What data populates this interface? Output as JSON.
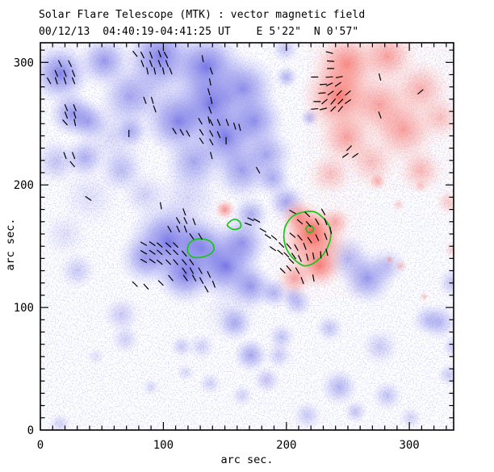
{
  "header": {
    "title": "Solar Flare Telescope (MTK) : vector magnetic field",
    "subtitle": "00/12/13  04:40:19-04:41:25 UT    E 5'22\"  N 0'57\""
  },
  "chart_data": {
    "type": "heatmap",
    "subtype": "solar vector magnetogram with overlaid transverse-field vectors and contours",
    "title": "Solar Flare Telescope (MTK) : vector magnetic field",
    "subtitle": "00/12/13  04:40:19-04:41:25 UT    E 5'22\"  N 0'57\"",
    "xlabel": "arc sec.",
    "ylabel": "arc sec.",
    "x_ticks": [
      0,
      100,
      200,
      300
    ],
    "y_ticks": [
      0,
      100,
      200,
      300
    ],
    "minor_tick_step": 10,
    "xlim": [
      0,
      336
    ],
    "ylim": [
      0,
      316
    ],
    "grid": false,
    "legend": "none",
    "colors": {
      "positive_red": "#f4675e",
      "negative_blue": "#6a6ae4",
      "contour": "#17c417",
      "vector": "#000000",
      "frame": "#000000",
      "background": "#ffffff"
    },
    "blue_blobs": [
      [
        16,
        291,
        26,
        0.85
      ],
      [
        52,
        301,
        23,
        0.7
      ],
      [
        98,
        305,
        30,
        0.9
      ],
      [
        135,
        295,
        33,
        0.95
      ],
      [
        164,
        278,
        30,
        0.8
      ],
      [
        138,
        265,
        33,
        0.95
      ],
      [
        72,
        272,
        26,
        0.55
      ],
      [
        26,
        258,
        20,
        0.75
      ],
      [
        39,
        252,
        18,
        0.6
      ],
      [
        112,
        252,
        30,
        0.85
      ],
      [
        151,
        239,
        30,
        0.9
      ],
      [
        174,
        252,
        26,
        0.75
      ],
      [
        36,
        222,
        18,
        0.55
      ],
      [
        13,
        219,
        20,
        0.4
      ],
      [
        66,
        212,
        20,
        0.45
      ],
      [
        74,
        244,
        14,
        0.5
      ],
      [
        125,
        219,
        26,
        0.6
      ],
      [
        164,
        212,
        26,
        0.65
      ],
      [
        184,
        225,
        23,
        0.6
      ],
      [
        189,
        205,
        16,
        0.55
      ],
      [
        171,
        176,
        16,
        0.55
      ],
      [
        200,
        288,
        10,
        0.5
      ],
      [
        219,
        255,
        8,
        0.5
      ],
      [
        199,
        311,
        12,
        0.4
      ],
      [
        105,
        153,
        36,
        0.95
      ],
      [
        131,
        147,
        30,
        0.9
      ],
      [
        151,
        134,
        30,
        0.9
      ],
      [
        118,
        127,
        26,
        0.85
      ],
      [
        164,
        153,
        23,
        0.7
      ],
      [
        85,
        140,
        23,
        0.6
      ],
      [
        171,
        117,
        20,
        0.7
      ],
      [
        200,
        186,
        16,
        0.6
      ],
      [
        250,
        140,
        20,
        0.5
      ],
      [
        266,
        124,
        23,
        0.7
      ],
      [
        282,
        134,
        16,
        0.4
      ],
      [
        190,
        112,
        14,
        0.5
      ],
      [
        209,
        104,
        13,
        0.45
      ],
      [
        196,
        76,
        12,
        0.4
      ],
      [
        235,
        83,
        12,
        0.4
      ],
      [
        90,
        280,
        40,
        0.3
      ],
      [
        60,
        240,
        33,
        0.25
      ],
      [
        40,
        190,
        26,
        0.2
      ],
      [
        85,
        192,
        20,
        0.3
      ],
      [
        120,
        190,
        30,
        0.25
      ],
      [
        20,
        160,
        20,
        0.2
      ],
      [
        155,
        95,
        25,
        0.2
      ],
      [
        30,
        130,
        16,
        0.35
      ],
      [
        66,
        94,
        16,
        0.35
      ],
      [
        69,
        74,
        13,
        0.3
      ],
      [
        131,
        68,
        12,
        0.3
      ],
      [
        158,
        87,
        15,
        0.5
      ],
      [
        171,
        61,
        15,
        0.6
      ],
      [
        115,
        68,
        10,
        0.35
      ],
      [
        138,
        38,
        10,
        0.3
      ],
      [
        184,
        41,
        12,
        0.4
      ],
      [
        194,
        61,
        12,
        0.35
      ],
      [
        217,
        12,
        13,
        0.35
      ],
      [
        243,
        35,
        16,
        0.5
      ],
      [
        256,
        15,
        10,
        0.4
      ],
      [
        276,
        68,
        16,
        0.35
      ],
      [
        282,
        28,
        13,
        0.4
      ],
      [
        315,
        90,
        14,
        0.4
      ],
      [
        325,
        88,
        16,
        0.45
      ],
      [
        335,
        120,
        13,
        0.4
      ],
      [
        332,
        45,
        10,
        0.35
      ],
      [
        16,
        5,
        10,
        0.3
      ],
      [
        164,
        28,
        10,
        0.3
      ],
      [
        118,
        47,
        8,
        0.25
      ],
      [
        301,
        10,
        10,
        0.3
      ],
      [
        336,
        68,
        10,
        0.35
      ],
      [
        205,
        110,
        10,
        0.3
      ],
      [
        90,
        35,
        8,
        0.25
      ],
      [
        45,
        60,
        8,
        0.2
      ]
    ],
    "red_blobs": [
      [
        249,
        298,
        30,
        0.8
      ],
      [
        282,
        305,
        26,
        0.6
      ],
      [
        243,
        272,
        33,
        0.85
      ],
      [
        276,
        265,
        30,
        0.6
      ],
      [
        309,
        278,
        26,
        0.5
      ],
      [
        295,
        245,
        30,
        0.6
      ],
      [
        249,
        239,
        26,
        0.6
      ],
      [
        325,
        255,
        20,
        0.4
      ],
      [
        269,
        219,
        23,
        0.4
      ],
      [
        309,
        212,
        20,
        0.45
      ],
      [
        236,
        209,
        20,
        0.4
      ],
      [
        332,
        186,
        12,
        0.35
      ],
      [
        274,
        203,
        8,
        0.5
      ],
      [
        223,
        153,
        30,
        0.9
      ],
      [
        220,
        163,
        20,
        0.95
      ],
      [
        227,
        134,
        20,
        0.8
      ],
      [
        210,
        174,
        16,
        0.7
      ],
      [
        207,
        124,
        16,
        0.6
      ],
      [
        240,
        170,
        14,
        0.5
      ],
      [
        150,
        180,
        9,
        0.7
      ],
      [
        284,
        139,
        4,
        0.5
      ],
      [
        293,
        134,
        6,
        0.35
      ],
      [
        312,
        109,
        4,
        0.4
      ],
      [
        291,
        184,
        6,
        0.3
      ],
      [
        335,
        147,
        8,
        0.3
      ],
      [
        309,
        199,
        6,
        0.3
      ]
    ],
    "vectors": [
      [
        16,
        299,
        -65
      ],
      [
        24,
        299,
        -65
      ],
      [
        13,
        291,
        -68
      ],
      [
        20,
        291,
        -68
      ],
      [
        27,
        291,
        -68
      ],
      [
        7,
        285,
        -60
      ],
      [
        13,
        285,
        -72
      ],
      [
        20,
        285,
        -72
      ],
      [
        27,
        285,
        -68
      ],
      [
        21,
        263,
        -68
      ],
      [
        28,
        263,
        -68
      ],
      [
        21,
        257,
        -70
      ],
      [
        28,
        257,
        -74
      ],
      [
        20,
        251,
        -48
      ],
      [
        28,
        251,
        -78
      ],
      [
        20,
        224,
        -70
      ],
      [
        27,
        224,
        -70
      ],
      [
        26,
        217,
        -50
      ],
      [
        85,
        269,
        -70
      ],
      [
        91,
        269,
        -74
      ],
      [
        93,
        262,
        -70
      ],
      [
        77,
        307,
        -52
      ],
      [
        83,
        306,
        -64
      ],
      [
        90,
        306,
        -70
      ],
      [
        97,
        307,
        -70
      ],
      [
        102,
        306,
        -60
      ],
      [
        83,
        299,
        -70
      ],
      [
        90,
        299,
        -70
      ],
      [
        97,
        299,
        -70
      ],
      [
        103,
        299,
        -70
      ],
      [
        87,
        293,
        -78
      ],
      [
        93,
        293,
        -78
      ],
      [
        100,
        293,
        -78
      ],
      [
        106,
        293,
        -70
      ],
      [
        132,
        303,
        -78
      ],
      [
        139,
        293,
        -70
      ],
      [
        138,
        284,
        -78
      ],
      [
        137,
        276,
        -74
      ],
      [
        139,
        269,
        -78
      ],
      [
        138,
        261,
        -70
      ],
      [
        137,
        253,
        -78
      ],
      [
        109,
        244,
        -58
      ],
      [
        115,
        243,
        -60
      ],
      [
        120,
        242,
        -62
      ],
      [
        130,
        252,
        -60
      ],
      [
        139,
        251,
        -64
      ],
      [
        145,
        251,
        -66
      ],
      [
        152,
        251,
        -70
      ],
      [
        131,
        243,
        -58
      ],
      [
        139,
        242,
        -62
      ],
      [
        145,
        241,
        -66
      ],
      [
        131,
        236,
        -56
      ],
      [
        139,
        235,
        -60
      ],
      [
        158,
        248,
        -72
      ],
      [
        162,
        247,
        -76
      ],
      [
        72,
        242,
        -90
      ],
      [
        151,
        236,
        -90
      ],
      [
        39,
        189,
        -35
      ],
      [
        98,
        183,
        -80
      ],
      [
        139,
        224,
        -75
      ],
      [
        177,
        212,
        -60
      ],
      [
        77,
        119,
        -45
      ],
      [
        86,
        117,
        -48
      ],
      [
        235,
        308,
        -15
      ],
      [
        236,
        301,
        -5
      ],
      [
        236,
        295,
        0
      ],
      [
        223,
        288,
        0
      ],
      [
        235,
        288,
        5
      ],
      [
        243,
        288,
        10
      ],
      [
        230,
        282,
        5
      ],
      [
        235,
        282,
        25
      ],
      [
        242,
        282,
        35
      ],
      [
        229,
        275,
        5
      ],
      [
        236,
        275,
        35
      ],
      [
        243,
        275,
        45
      ],
      [
        250,
        275,
        40
      ],
      [
        225,
        268,
        0
      ],
      [
        231,
        268,
        40
      ],
      [
        238,
        268,
        50
      ],
      [
        244,
        268,
        45
      ],
      [
        250,
        268,
        35
      ],
      [
        223,
        262,
        5
      ],
      [
        230,
        262,
        15
      ],
      [
        238,
        262,
        45
      ],
      [
        244,
        262,
        50
      ],
      [
        276,
        288,
        -75
      ],
      [
        309,
        276,
        40
      ],
      [
        276,
        257,
        -70
      ],
      [
        251,
        230,
        45
      ],
      [
        248,
        224,
        35
      ],
      [
        256,
        224,
        35
      ],
      [
        171,
        172,
        -25
      ],
      [
        176,
        171,
        -30
      ],
      [
        169,
        168,
        -20
      ],
      [
        181,
        163,
        -30
      ],
      [
        185,
        158,
        -35
      ],
      [
        190,
        157,
        -40
      ],
      [
        196,
        151,
        -45
      ],
      [
        202,
        150,
        -50
      ],
      [
        208,
        149,
        -60
      ],
      [
        215,
        150,
        -70
      ],
      [
        189,
        148,
        -35
      ],
      [
        195,
        145,
        -40
      ],
      [
        200,
        143,
        -45
      ],
      [
        206,
        142,
        -55
      ],
      [
        211,
        140,
        -65
      ],
      [
        217,
        141,
        -75
      ],
      [
        222,
        142,
        -80
      ],
      [
        228,
        143,
        -85
      ],
      [
        233,
        145,
        -75
      ],
      [
        205,
        178,
        -30
      ],
      [
        217,
        176,
        -45
      ],
      [
        230,
        178,
        -60
      ],
      [
        211,
        170,
        -40
      ],
      [
        218,
        168,
        -50
      ],
      [
        225,
        170,
        -60
      ],
      [
        232,
        170,
        -70
      ],
      [
        205,
        159,
        -40
      ],
      [
        211,
        157,
        -50
      ],
      [
        219,
        155,
        -55
      ],
      [
        225,
        157,
        -65
      ],
      [
        232,
        158,
        -70
      ],
      [
        236,
        163,
        -75
      ],
      [
        204,
        138,
        -45
      ],
      [
        202,
        132,
        -50
      ],
      [
        209,
        130,
        -60
      ],
      [
        197,
        130,
        -45
      ],
      [
        213,
        122,
        -70
      ],
      [
        222,
        124,
        -80
      ],
      [
        84,
        152,
        -30
      ],
      [
        91,
        152,
        -35
      ],
      [
        97,
        151,
        -40
      ],
      [
        104,
        151,
        -40
      ],
      [
        110,
        151,
        -45
      ],
      [
        84,
        145,
        -30
      ],
      [
        91,
        145,
        -35
      ],
      [
        97,
        145,
        -40
      ],
      [
        104,
        145,
        -45
      ],
      [
        110,
        145,
        -45
      ],
      [
        117,
        144,
        -50
      ],
      [
        84,
        138,
        -30
      ],
      [
        91,
        138,
        -35
      ],
      [
        97,
        137,
        -40
      ],
      [
        104,
        137,
        -45
      ],
      [
        110,
        137,
        -50
      ],
      [
        117,
        137,
        -50
      ],
      [
        123,
        137,
        -55
      ],
      [
        105,
        164,
        -60
      ],
      [
        112,
        164,
        -65
      ],
      [
        118,
        164,
        -70
      ],
      [
        112,
        171,
        -60
      ],
      [
        118,
        171,
        -65
      ],
      [
        125,
        170,
        -70
      ],
      [
        117,
        178,
        -70
      ],
      [
        123,
        158,
        -55
      ],
      [
        130,
        158,
        -60
      ],
      [
        117,
        130,
        -55
      ],
      [
        123,
        130,
        -60
      ],
      [
        130,
        130,
        -60
      ],
      [
        118,
        124,
        -55
      ],
      [
        125,
        124,
        -60
      ],
      [
        131,
        122,
        -60
      ],
      [
        137,
        127,
        -65
      ],
      [
        141,
        119,
        -70
      ],
      [
        135,
        115,
        -60
      ],
      [
        106,
        124,
        -50
      ],
      [
        98,
        120,
        -45
      ]
    ],
    "contours": [
      {
        "points": [
          [
            215,
            178
          ],
          [
            206,
            175
          ],
          [
            200,
            168
          ],
          [
            198,
            160
          ],
          [
            199,
            151
          ],
          [
            203,
            143
          ],
          [
            209,
            137
          ],
          [
            215,
            134
          ],
          [
            222,
            136
          ],
          [
            228,
            141
          ],
          [
            233,
            148
          ],
          [
            236,
            157
          ],
          [
            235,
            166
          ],
          [
            230,
            173
          ],
          [
            223,
            178
          ]
        ]
      },
      {
        "points": [
          [
            222,
            164
          ],
          [
            220.5,
            166.5
          ],
          [
            217.5,
            166.5
          ],
          [
            216,
            164
          ],
          [
            217.5,
            161.5
          ],
          [
            220.5,
            161.5
          ]
        ]
      },
      {
        "points": [
          [
            120,
            150
          ],
          [
            123,
            154
          ],
          [
            129,
            156
          ],
          [
            136,
            155
          ],
          [
            140,
            152
          ],
          [
            141,
            147
          ],
          [
            137,
            143
          ],
          [
            131,
            141
          ],
          [
            124,
            141
          ],
          [
            120,
            145
          ]
        ]
      },
      {
        "points": [
          [
            154,
            170
          ],
          [
            158,
            172
          ],
          [
            162,
            170
          ],
          [
            163,
            166
          ],
          [
            160,
            164
          ],
          [
            156,
            164
          ],
          [
            152,
            167
          ]
        ]
      }
    ]
  }
}
